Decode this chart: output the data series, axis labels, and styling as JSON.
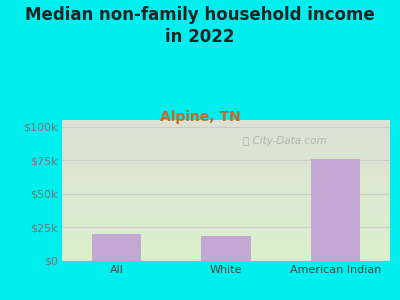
{
  "title": "Median non-family household income\nin 2022",
  "subtitle": "Alpine, TN",
  "categories": [
    "All",
    "White",
    "American Indian"
  ],
  "values": [
    20000,
    18500,
    76000
  ],
  "bar_color": "#c4a8d4",
  "background_color": "#00EEEE",
  "plot_bg_top": "#d8ddd0",
  "plot_bg_bottom": "#d8edcc",
  "yticks": [
    0,
    25000,
    50000,
    75000,
    100000
  ],
  "ytick_labels": [
    "$0",
    "$25k",
    "$50k",
    "$75k",
    "$100k"
  ],
  "ylim": [
    0,
    105000
  ],
  "title_fontsize": 12,
  "subtitle_fontsize": 10,
  "subtitle_color": "#cc6622",
  "tick_label_color": "#777777",
  "watermark": "City-Data.com",
  "watermark_color": "#aaaaaa",
  "gridline_color": "#cccccc"
}
